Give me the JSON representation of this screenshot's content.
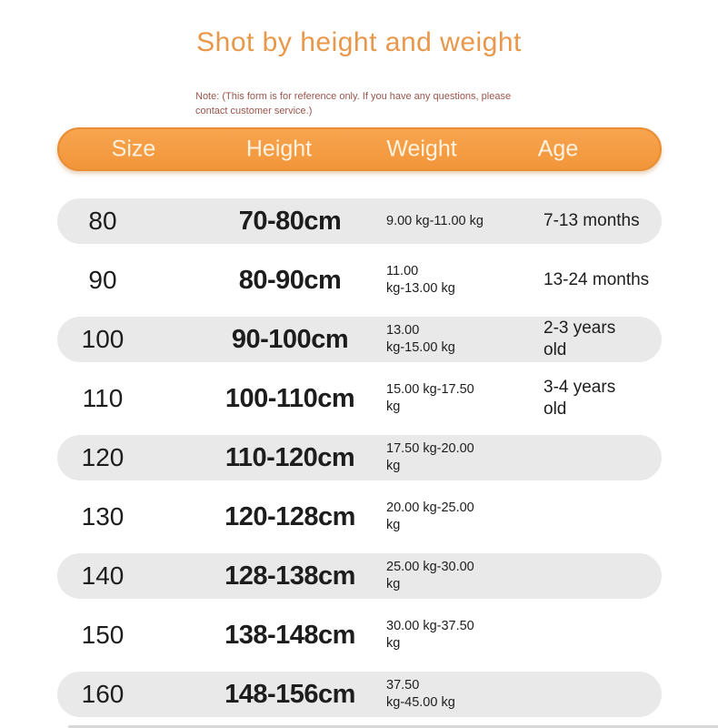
{
  "page": {
    "title": "Shot by height and weight",
    "note": "Note: (This form is for reference only. If you have any questions, please contact customer service.)"
  },
  "table": {
    "columns": [
      {
        "label": "Size"
      },
      {
        "label": "Height"
      },
      {
        "label": "Weight"
      },
      {
        "label": "Age"
      }
    ],
    "rows": [
      {
        "size": "80",
        "height": "70-80cm",
        "weight": "9.00 kg-11.00 kg",
        "age": "7-13 months"
      },
      {
        "size": "90",
        "height": "80-90cm",
        "weight": "11.00\nkg-13.00 kg",
        "age": "13-24 months"
      },
      {
        "size": "100",
        "height": "90-100cm",
        "weight": "13.00\nkg-15.00 kg",
        "age": "2-3 years\nold"
      },
      {
        "size": "110",
        "height": "100-110cm",
        "weight": "15.00 kg-17.50\nkg",
        "age": "3-4 years\nold"
      },
      {
        "size": "120",
        "height": "110-120cm",
        "weight": "17.50 kg-20.00\nkg",
        "age": ""
      },
      {
        "size": "130",
        "height": "120-128cm",
        "weight": "20.00 kg-25.00\nkg",
        "age": ""
      },
      {
        "size": "140",
        "height": "128-138cm",
        "weight": "25.00 kg-30.00\nkg",
        "age": ""
      },
      {
        "size": "150",
        "height": "138-148cm",
        "weight": "30.00 kg-37.50\nkg",
        "age": ""
      },
      {
        "size": "160",
        "height": "148-156cm",
        "weight": "37.50\nkg-45.00 kg",
        "age": ""
      }
    ]
  },
  "colors": {
    "accent": "#F5A04A",
    "accent_border": "#EB8D33",
    "accent_text": "#FCF2DF",
    "title": "#E9984B",
    "row_gray": "#E9E9E9",
    "body_text": "#1D1D1D",
    "note": "#9A554B",
    "bottom_line": "#D8D8D8"
  }
}
